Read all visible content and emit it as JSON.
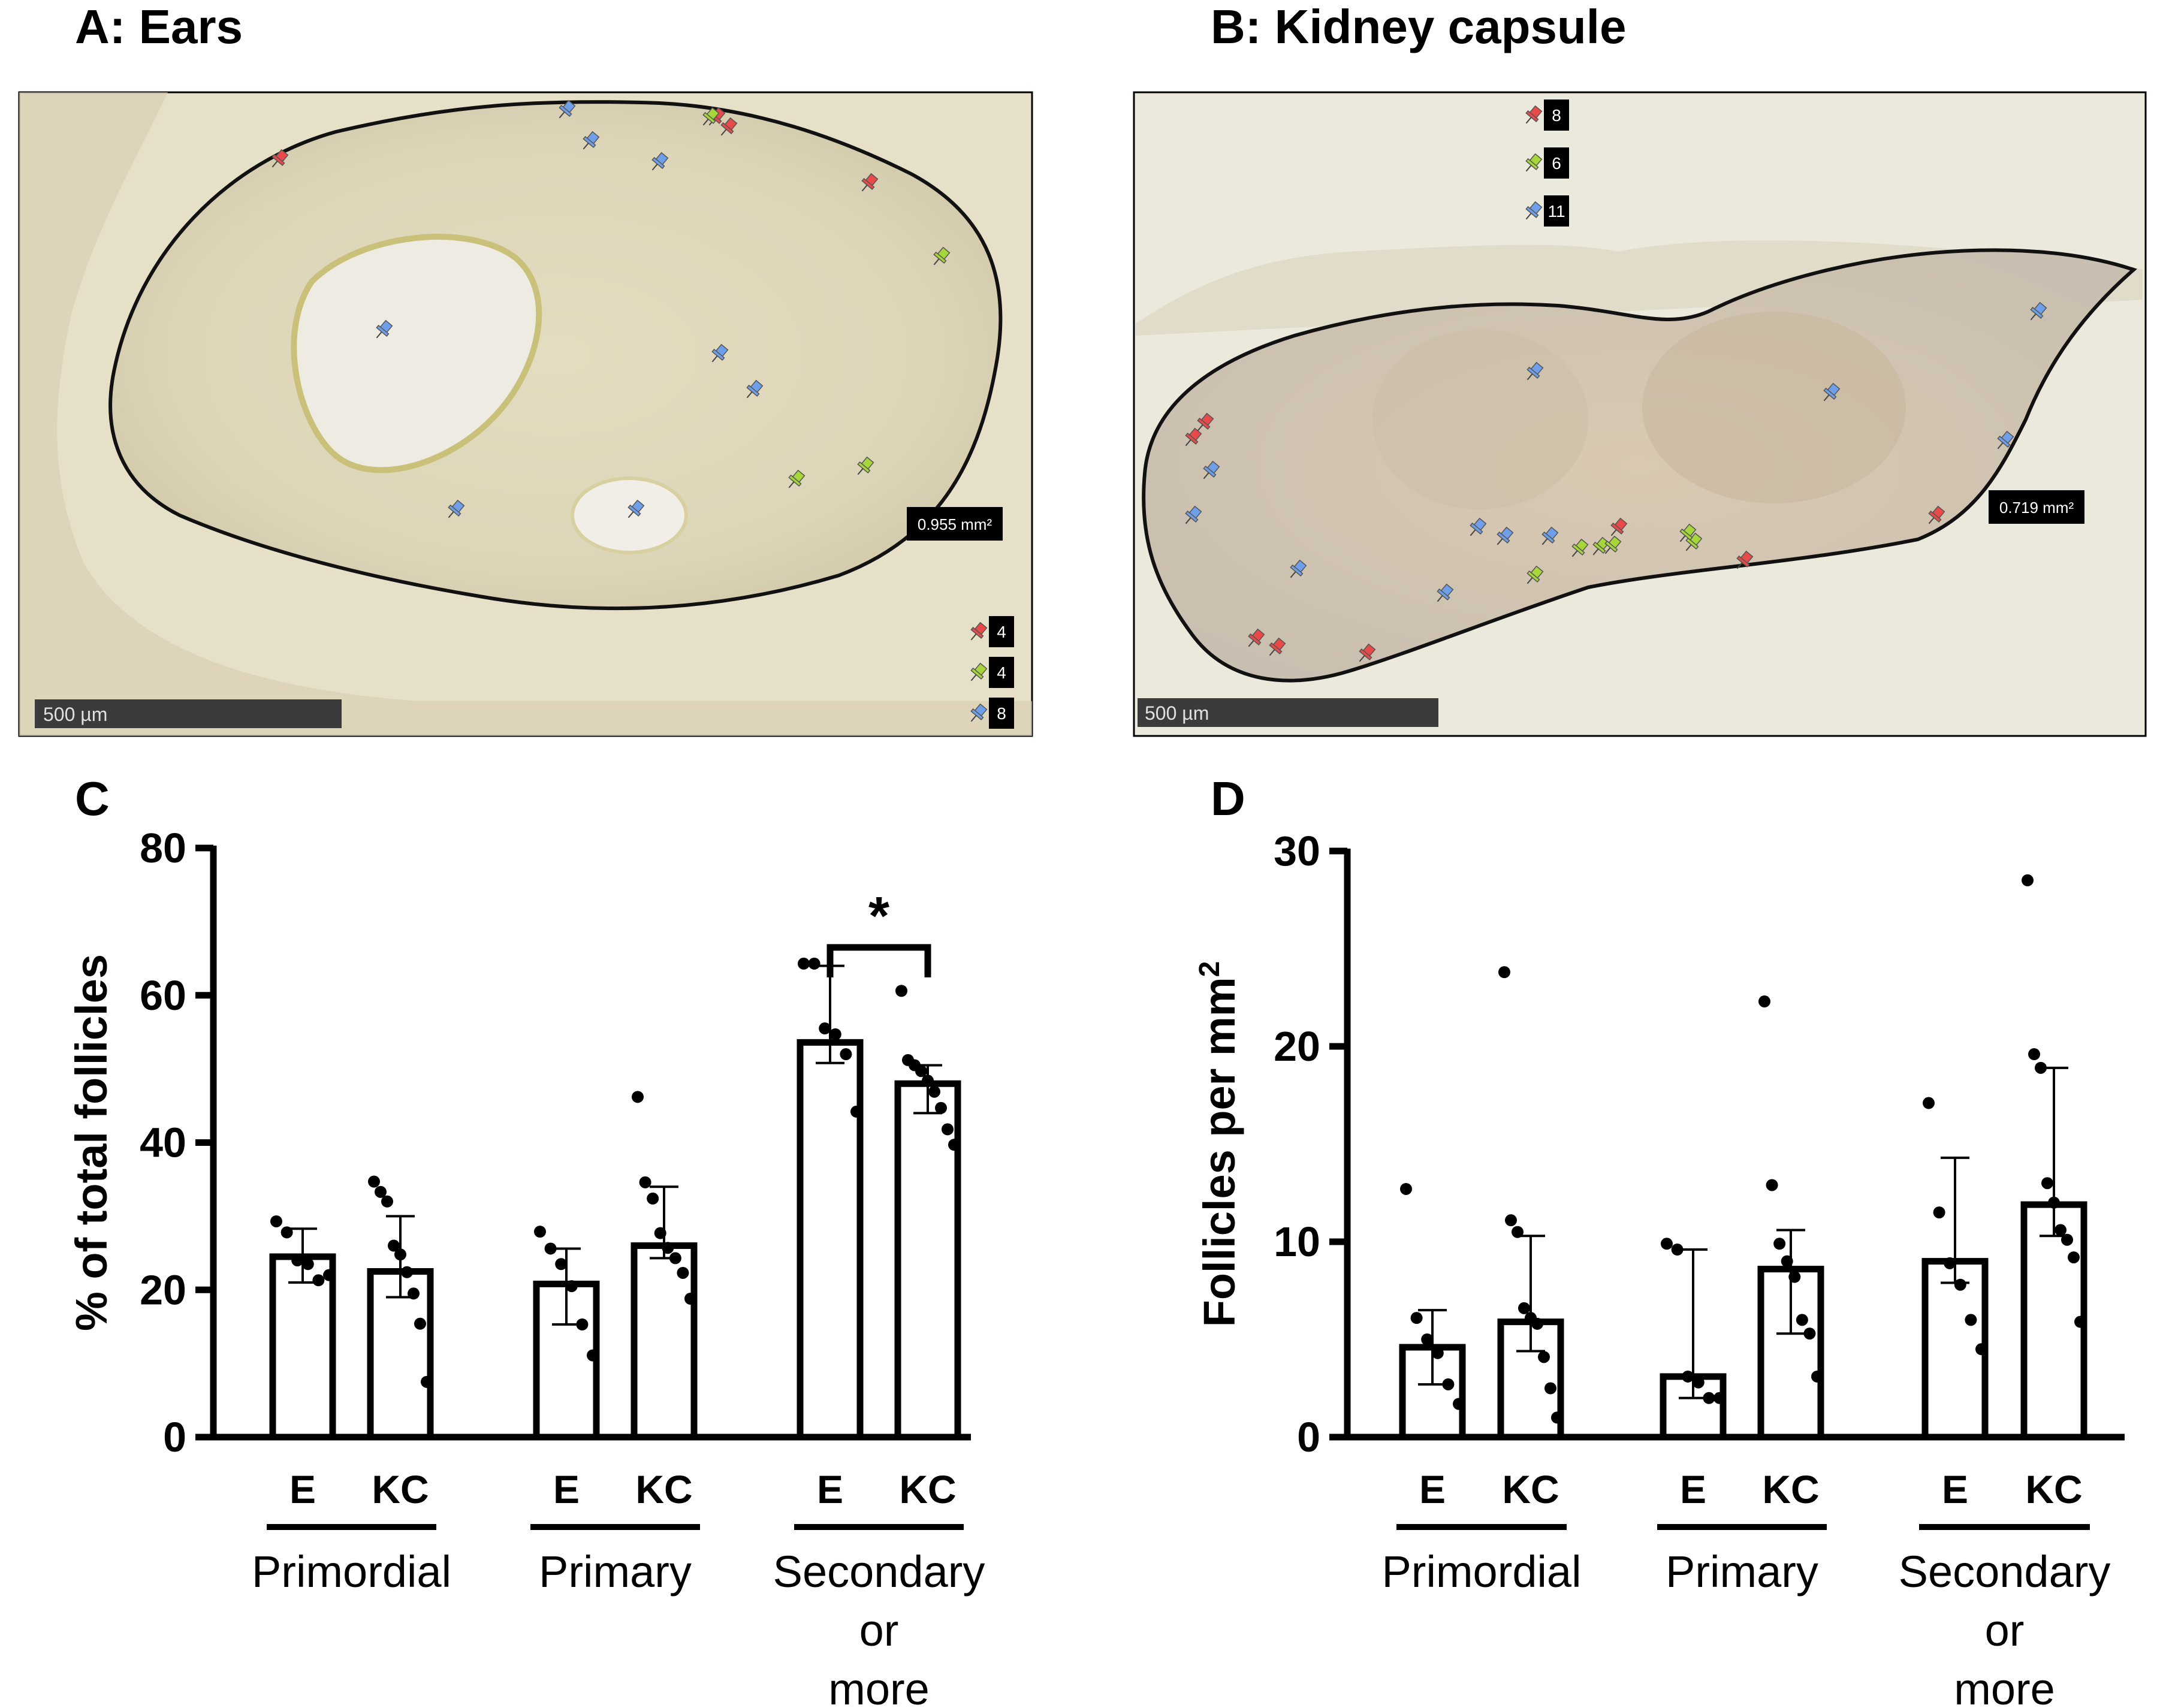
{
  "figure": {
    "panel_a": {
      "title": "A: Ears",
      "area_label": "0.955 mm²",
      "scale_label": "500 µm",
      "counts": [
        {
          "color": "#e84a4a",
          "value": "4"
        },
        {
          "color": "#a6d63a",
          "value": "4"
        },
        {
          "color": "#6f9fe8",
          "value": "8"
        }
      ]
    },
    "panel_b": {
      "title": "B: Kidney capsule",
      "area_label": "0.719 mm²",
      "scale_label": "500 µm",
      "counts": [
        {
          "color": "#e84a4a",
          "value": "8"
        },
        {
          "color": "#a6d63a",
          "value": "6"
        },
        {
          "color": "#6f9fe8",
          "value": "11"
        }
      ]
    },
    "panel_c": {
      "title": "C"
    },
    "panel_d": {
      "title": "D"
    }
  },
  "chart_data": [
    {
      "type": "bar",
      "panel": "C",
      "ylabel": "% of total follicles",
      "ylim": [
        0,
        80
      ],
      "yticks": [
        0,
        20,
        40,
        60,
        80
      ],
      "groups": [
        {
          "name": "Primordial",
          "label_lines": [
            "Primordial"
          ]
        },
        {
          "name": "Primary",
          "label_lines": [
            "Primary"
          ]
        },
        {
          "name": "Secondary or more",
          "label_lines": [
            "Secondary",
            "or",
            "more"
          ]
        }
      ],
      "bars": [
        {
          "group": 0,
          "label": "E",
          "value": 24.5,
          "err": [
            21.0,
            28.3
          ],
          "points": [
            29.3,
            27.8,
            24.0,
            23.5,
            21.3,
            22.0
          ]
        },
        {
          "group": 0,
          "label": "KC",
          "value": 22.5,
          "err": [
            19.0,
            30.0
          ],
          "points": [
            34.7,
            33.3,
            32.0,
            26.0,
            24.8,
            22.4,
            19.5,
            15.4,
            7.5
          ]
        },
        {
          "group": 1,
          "label": "E",
          "value": 20.8,
          "err": [
            15.3,
            25.6
          ],
          "points": [
            27.9,
            25.6,
            23.5,
            20.5,
            15.3,
            11.1
          ]
        },
        {
          "group": 1,
          "label": "KC",
          "value": 26.0,
          "err": [
            24.3,
            34.0
          ],
          "points": [
            46.2,
            34.6,
            32.4,
            27.7,
            25.7,
            24.3,
            22.3,
            18.8
          ]
        },
        {
          "group": 2,
          "label": "E",
          "value": 53.6,
          "err": [
            50.8,
            64.0
          ],
          "points": [
            64.3,
            64.3,
            55.5,
            54.7,
            52.0,
            44.2
          ]
        },
        {
          "group": 2,
          "label": "KC",
          "value": 48.0,
          "err": [
            44.0,
            50.5
          ],
          "points": [
            60.6,
            51.2,
            50.5,
            49.7,
            48.4,
            46.9,
            44.7,
            41.8,
            39.7
          ]
        }
      ],
      "significance": {
        "between": [
          4,
          5
        ],
        "label": "*"
      }
    },
    {
      "type": "bar",
      "panel": "D",
      "ylabel": "Follicles per mm",
      "ylabel_sup": "2",
      "ylim": [
        0,
        30
      ],
      "yticks": [
        0,
        10,
        20,
        30
      ],
      "groups": [
        {
          "name": "Primordial",
          "label_lines": [
            "Primordial"
          ]
        },
        {
          "name": "Primary",
          "label_lines": [
            "Primary"
          ]
        },
        {
          "name": "Secondary or more",
          "label_lines": [
            "Secondary",
            "or",
            "more"
          ]
        }
      ],
      "bars": [
        {
          "group": 0,
          "label": "E",
          "value": 4.6,
          "err": [
            2.7,
            6.5
          ],
          "points": [
            12.7,
            6.1,
            5.0,
            4.3,
            2.7,
            1.7
          ]
        },
        {
          "group": 0,
          "label": "KC",
          "value": 5.9,
          "err": [
            4.4,
            10.3
          ],
          "points": [
            23.8,
            11.1,
            10.5,
            6.6,
            6.1,
            5.8,
            4.1,
            2.5,
            1.0
          ]
        },
        {
          "group": 1,
          "label": "E",
          "value": 3.1,
          "err": [
            2.0,
            9.6
          ],
          "points": [
            9.9,
            9.6,
            3.1,
            2.8,
            2.0,
            2.0
          ]
        },
        {
          "group": 1,
          "label": "KC",
          "value": 8.6,
          "err": [
            5.3,
            10.6
          ],
          "points": [
            22.3,
            12.9,
            9.9,
            9.0,
            8.2,
            6.0,
            5.3,
            3.1
          ]
        },
        {
          "group": 2,
          "label": "E",
          "value": 9.0,
          "err": [
            7.9,
            14.3
          ],
          "points": [
            17.1,
            11.5,
            8.9,
            7.8,
            6.0,
            4.5
          ]
        },
        {
          "group": 2,
          "label": "KC",
          "value": 11.9,
          "err": [
            10.3,
            18.9
          ],
          "points": [
            28.5,
            19.6,
            18.9,
            13.0,
            12.0,
            10.6,
            10.1,
            9.2,
            5.9
          ]
        }
      ]
    }
  ]
}
